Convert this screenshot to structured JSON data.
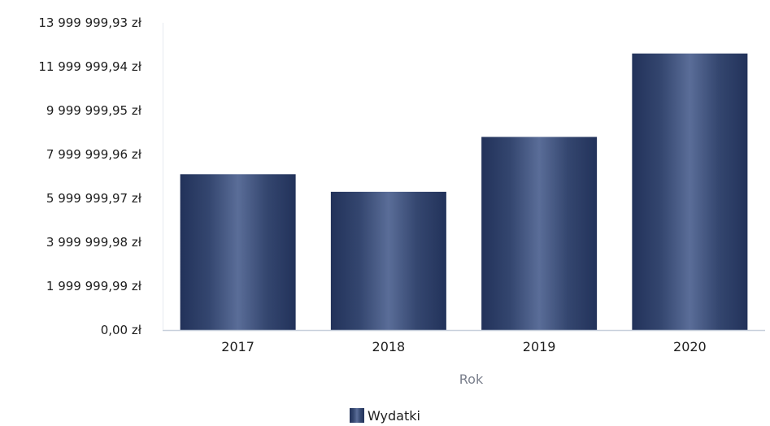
{
  "chart_data": {
    "type": "bar",
    "categories": [
      "2017",
      "2018",
      "2019",
      "2020"
    ],
    "series": [
      {
        "name": "Wydatki",
        "values": [
          7100000,
          6300000,
          8800000,
          12600000
        ]
      }
    ],
    "xlabel": "Rok",
    "ylabel": "",
    "ylim": [
      0,
      13999999.93
    ],
    "y_ticks": [
      0,
      1999999.99,
      3999999.98,
      5999999.97,
      7999999.96,
      9999999.95,
      11999999.94,
      13999999.93
    ],
    "y_tick_labels": [
      "0,00 zł",
      "1 999 999,99 zł",
      "3 999 999,98 zł",
      "5 999 999,97 zł",
      "7 999 999,96 zł",
      "9 999 999,95 zł",
      "11 999 999,94 zł",
      "13 999 999,93 zł"
    ],
    "grid": false,
    "legend": {
      "position": "bottom"
    },
    "colors": {
      "bar": "#2c3e6b",
      "bar_highlight": "#5a6f9c",
      "axis": "#c8d0dc"
    }
  }
}
